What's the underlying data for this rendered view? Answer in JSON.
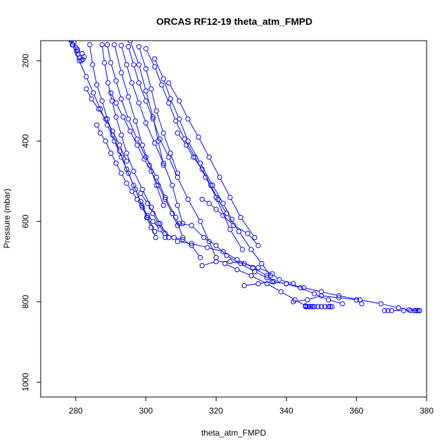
{
  "chart_data": {
    "type": "line",
    "title": "ORCAS RF12-19 theta_atm_FMPD",
    "xlabel": "theta_atm_FMPD",
    "ylabel": "Pressure (mbar)",
    "xlim": [
      270,
      380
    ],
    "ylim": [
      1037,
      150
    ],
    "y_reversed": true,
    "x_ticks": [
      280,
      300,
      320,
      340,
      360,
      380
    ],
    "y_ticks": [
      200,
      400,
      600,
      800,
      1000
    ],
    "grid": false,
    "legend": "none",
    "marker": "open-circle",
    "series_color": "#0000ff",
    "series": [
      {
        "x": [
          278.5,
          279.2,
          280.5,
          281.8,
          282.4,
          282.0,
          281.6,
          281.0,
          280.6,
          280.3,
          280.1,
          279.5,
          278.7
        ],
        "y": [
          147,
          160,
          172,
          182,
          190,
          197,
          200,
          193,
          184,
          176,
          168,
          155,
          150
        ]
      },
      {
        "x": [
          279.0,
          281.0,
          283.0,
          285.0,
          287.0,
          289.0,
          291.0,
          293.0,
          295.0,
          297.0,
          298.8,
          300.2,
          301.5,
          302.8
        ],
        "y": [
          160,
          200,
          240,
          280,
          320,
          360,
          400,
          440,
          480,
          520,
          560,
          590,
          615,
          640
        ]
      },
      {
        "x": [
          284.0,
          284.8,
          286.0,
          287.5,
          289.0,
          290.5,
          292.5,
          294.5,
          296.5,
          298.5,
          300.5,
          302.5
        ],
        "y": [
          160,
          210,
          260,
          300,
          345,
          385,
          425,
          470,
          510,
          550,
          590,
          625
        ]
      },
      {
        "x": [
          287.5,
          288.2,
          289.2,
          290.3,
          291.5,
          293.0,
          294.5,
          296.5,
          299.0,
          301.5,
          304.0,
          306.5
        ],
        "y": [
          160,
          205,
          255,
          300,
          340,
          385,
          430,
          475,
          520,
          565,
          605,
          640
        ]
      },
      {
        "x": [
          289.0,
          290.0,
          291.5,
          293.0,
          295.0,
          297.5,
          300.0,
          303.0,
          305.5,
          308.5,
          310.5
        ],
        "y": [
          160,
          205,
          250,
          295,
          345,
          395,
          440,
          490,
          540,
          590,
          640
        ]
      },
      {
        "x": [
          293.0,
          294.5,
          296.0,
          298.0,
          300.0,
          302.5,
          305.0,
          307.5,
          309.0,
          310.5
        ],
        "y": [
          162,
          210,
          255,
          305,
          355,
          405,
          455,
          510,
          560,
          605
        ]
      },
      {
        "x": [
          295.0,
          296.5,
          298.0,
          300.0,
          302.0,
          304.0,
          306.5,
          309.0,
          312.0,
          315.5,
          318.0,
          320.0
        ],
        "y": [
          165,
          210,
          255,
          300,
          345,
          395,
          440,
          490,
          545,
          600,
          650,
          690
        ]
      },
      {
        "x": [
          295.5,
          298.0,
          300.0,
          302.0,
          303.5,
          305.0
        ],
        "y": [
          150,
          210,
          275,
          340,
          400,
          460
        ]
      },
      {
        "x": [
          298.0,
          300.0,
          301.5,
          303.0,
          305.0,
          307.0,
          309.0
        ],
        "y": [
          165,
          220,
          270,
          325,
          380,
          430,
          480
        ]
      },
      {
        "x": [
          300.0,
          302.5,
          304.5,
          306.5,
          308.5,
          311.0,
          314.0,
          317.0,
          320.0,
          324.0,
          327.5
        ],
        "y": [
          170,
          215,
          260,
          305,
          350,
          395,
          440,
          490,
          540,
          620,
          670
        ]
      },
      {
        "x": [
          302.5,
          305.0,
          307.0,
          309.5,
          312.0,
          315.5,
          319.0,
          322.0,
          324.5
        ],
        "y": [
          195,
          245,
          295,
          345,
          400,
          455,
          510,
          555,
          595
        ]
      },
      {
        "x": [
          306.5,
          309.5,
          312.0,
          315.0,
          318.0,
          321.0,
          324.0,
          327.0,
          331.0
        ],
        "y": [
          255,
          300,
          345,
          390,
          440,
          490,
          540,
          590,
          640
        ]
      },
      {
        "x": [
          309.0,
          311.5,
          313.5,
          316.0,
          318.5,
          320.5,
          323.0,
          326.5,
          330.0,
          333.0,
          335.5
        ],
        "y": [
          380,
          410,
          440,
          470,
          510,
          545,
          580,
          625,
          670,
          705,
          735
        ]
      },
      {
        "x": [
          316.0,
          318.0,
          320.0,
          322.0,
          325.0,
          329.0,
          332.0
        ],
        "y": [
          545,
          555,
          570,
          585,
          610,
          630,
          660
        ]
      },
      {
        "x": [
          309.5,
          313.0,
          316.5,
          320.0,
          323.0,
          327.0,
          331.0,
          334.5,
          336.0
        ],
        "y": [
          605,
          610,
          640,
          660,
          685,
          705,
          725,
          740,
          750
        ]
      },
      {
        "x": [
          286.0,
          287.0,
          288.5,
          290.0,
          291.5,
          293.0,
          294.5,
          296.0,
          297.5,
          299.0,
          300.5,
          302.0,
          304.0,
          305.5
        ],
        "y": [
          360,
          380,
          400,
          430,
          455,
          480,
          505,
          525,
          545,
          565,
          585,
          600,
          620,
          640
        ]
      },
      {
        "x": [
          290.0,
          291.5,
          293.5,
          295.5,
          297.5,
          299.5,
          301.5,
          303.5,
          305.5,
          307.5,
          309.0
        ],
        "y": [
          280,
          305,
          340,
          375,
          410,
          445,
          475,
          510,
          545,
          580,
          610
        ]
      },
      {
        "x": [
          309.0,
          313.0,
          317.5,
          322.0,
          326.0,
          330.5,
          334.5,
          336.5
        ],
        "y": [
          650,
          655,
          665,
          675,
          695,
          715,
          735,
          750
        ]
      },
      {
        "x": [
          316.0,
          320.0,
          324.0,
          328.0,
          332.0,
          336.0,
          338.0,
          342.0
        ],
        "y": [
          710,
          700,
          700,
          705,
          715,
          730,
          745,
          755
        ]
      },
      {
        "x": [
          322.5,
          326.0,
          330.0,
          334.5,
          338.5,
          342.5,
          345.5
        ],
        "y": [
          705,
          720,
          735,
          755,
          775,
          795,
          810
        ]
      },
      {
        "x": [
          328.0,
          332.0,
          336.0,
          340.0,
          344.0,
          348.0,
          352.0,
          356.0
        ],
        "y": [
          760,
          755,
          750,
          755,
          765,
          780,
          795,
          805
        ]
      },
      {
        "x": [
          336.0,
          340.0,
          345.0,
          350.0,
          355.0,
          361.0,
          367.0,
          372.0,
          375.0,
          378.0
        ],
        "y": [
          750,
          755,
          765,
          775,
          785,
          795,
          805,
          815,
          820,
          822
        ]
      },
      {
        "x": [
          342.0,
          346.0,
          350.0,
          355.0,
          360.0,
          361.5
        ],
        "y": [
          800,
          795,
          785,
          790,
          795,
          805
        ]
      },
      {
        "x": [
          345.5,
          346.0,
          346.5,
          347.0,
          347.5,
          348.0,
          349.0,
          350.0,
          351.0,
          352.0,
          352.5,
          353.0
        ],
        "y": [
          812,
          812,
          812,
          812,
          812,
          812,
          812,
          812,
          812,
          812,
          812,
          812
        ]
      },
      {
        "x": [
          368.0,
          369.0,
          370.0,
          373.5,
          375.5,
          376.5,
          377.0,
          377.5,
          378.0
        ],
        "y": [
          822,
          822,
          822,
          822,
          822,
          822,
          822,
          822,
          822
        ]
      },
      {
        "x": [
          283.0,
          284.5,
          286.5,
          288.5,
          290.5,
          292.5,
          294.5
        ],
        "y": [
          270,
          295,
          320,
          345,
          375,
          410,
          450
        ]
      },
      {
        "x": [
          291.0,
          293.0,
          295.0,
          297.0,
          299.0,
          301.0,
          303.0,
          305.0
        ],
        "y": [
          160,
          230,
          290,
          350,
          410,
          460,
          510,
          560
        ]
      },
      {
        "x": [
          298.5,
          300.5,
          302.0,
          303.5,
          305.5,
          308.0,
          310.5,
          313.0,
          315.5
        ],
        "y": [
          530,
          555,
          580,
          605,
          630,
          640,
          645,
          660,
          690
        ]
      }
    ]
  }
}
